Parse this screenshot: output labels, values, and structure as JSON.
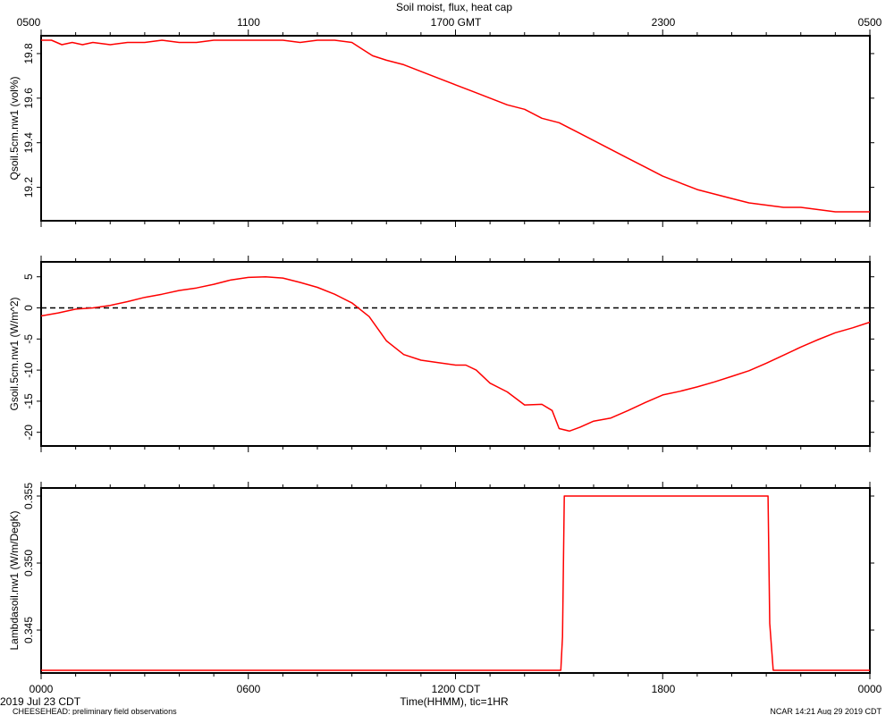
{
  "figure": {
    "title": "Soil moist, flux, heat cap",
    "top_axis_ticks": [
      "0500",
      "1100",
      "1700 GMT",
      "2300",
      "0500"
    ],
    "bottom_axis_ticks": [
      "0000",
      "0600",
      "1200 CDT",
      "1800",
      "0000"
    ],
    "x_label": "Time(HHMM), tic=1HR",
    "date_label": "2019 Jul 23 CDT",
    "footer_left": "CHEESEHEAD: preliminary field observations",
    "footer_right": "NCAR 14:21 Aug 29 2019 CDT"
  },
  "colors": {
    "series": "#ff0000",
    "axes": "#000000",
    "reference": "#000000"
  },
  "chart_data": [
    {
      "type": "line",
      "ylabel": "Qsoil.5cm.nw1 (vol%)",
      "xlim": [
        0,
        24
      ],
      "ylim": [
        19.05,
        19.88
      ],
      "yticks": [
        19.2,
        19.4,
        19.6,
        19.8
      ],
      "ytick_labels": [
        "19.2",
        "19.4",
        "19.6",
        "19.8"
      ],
      "series": [
        {
          "x": [
            0,
            0.3,
            0.6,
            0.9,
            1.2,
            1.5,
            2,
            2.5,
            3,
            3.5,
            4,
            4.5,
            5,
            5.5,
            6,
            6.5,
            7,
            7.5,
            8,
            8.5,
            9,
            9.3,
            9.6,
            10,
            10.5,
            11,
            11.5,
            12,
            12.5,
            13,
            13.5,
            14,
            14.5,
            15,
            15.5,
            16,
            16.5,
            17,
            17.5,
            18,
            18.5,
            19,
            19.5,
            20,
            20.5,
            21,
            21.5,
            22,
            22.5,
            23,
            23.5,
            24
          ],
          "y": [
            19.86,
            19.86,
            19.84,
            19.85,
            19.84,
            19.85,
            19.84,
            19.85,
            19.85,
            19.86,
            19.85,
            19.85,
            19.86,
            19.86,
            19.86,
            19.86,
            19.86,
            19.85,
            19.86,
            19.86,
            19.85,
            19.82,
            19.79,
            19.77,
            19.75,
            19.72,
            19.69,
            19.66,
            19.63,
            19.6,
            19.57,
            19.55,
            19.51,
            19.49,
            19.45,
            19.41,
            19.37,
            19.33,
            19.29,
            19.25,
            19.22,
            19.19,
            19.17,
            19.15,
            19.13,
            19.12,
            19.11,
            19.11,
            19.1,
            19.09,
            19.09,
            19.09
          ]
        }
      ]
    },
    {
      "type": "line",
      "ylabel": "Gsoil.5cm.nw1 (W/m^2)",
      "xlim": [
        0,
        24
      ],
      "ylim": [
        -22.2,
        7.4
      ],
      "yticks": [
        -20,
        -15,
        -10,
        -5,
        0,
        5
      ],
      "ytick_labels": [
        "-20",
        "-15",
        "-10",
        "-5",
        "0",
        "5"
      ],
      "reference_line": 0,
      "series": [
        {
          "x": [
            0,
            0.5,
            1,
            1.5,
            2,
            2.5,
            3,
            3.5,
            4,
            4.5,
            5,
            5.5,
            6,
            6.5,
            7,
            7.5,
            8,
            8.5,
            9,
            9.5,
            10,
            10.5,
            11,
            11.5,
            12,
            12.3,
            12.6,
            13,
            13.5,
            14,
            14.5,
            14.8,
            15,
            15.3,
            15.6,
            16,
            16.5,
            17,
            17.5,
            18,
            18.5,
            19,
            19.5,
            20,
            20.5,
            21,
            21.5,
            22,
            22.5,
            23,
            23.5,
            24
          ],
          "y": [
            -1.3,
            -0.8,
            -0.2,
            0.0,
            0.4,
            1.0,
            1.7,
            2.2,
            2.8,
            3.2,
            3.8,
            4.5,
            4.9,
            5.0,
            4.8,
            4.1,
            3.3,
            2.2,
            0.8,
            -1.4,
            -5.3,
            -7.5,
            -8.4,
            -8.8,
            -9.2,
            -9.2,
            -10.0,
            -12.1,
            -13.5,
            -15.6,
            -15.5,
            -16.5,
            -19.4,
            -19.8,
            -19.2,
            -18.2,
            -17.7,
            -16.5,
            -15.2,
            -14.0,
            -13.4,
            -12.7,
            -11.9,
            -11.0,
            -10.1,
            -8.9,
            -7.6,
            -6.3,
            -5.1,
            -4.0,
            -3.2,
            -2.3
          ]
        }
      ]
    },
    {
      "type": "line",
      "ylabel": "Lambdasoil.nw1 (W/m/DegK)",
      "xlim": [
        0,
        24
      ],
      "ylim": [
        0.3418,
        0.3556
      ],
      "yticks": [
        0.345,
        0.35,
        0.355
      ],
      "ytick_labels": [
        "0.345",
        "0.350",
        "0.355"
      ],
      "series": [
        {
          "x": [
            0,
            15.05,
            15.1,
            15.15,
            21.05,
            21.1,
            21.2,
            24
          ],
          "y": [
            0.342,
            0.342,
            0.3445,
            0.355,
            0.355,
            0.3455,
            0.342,
            0.342
          ]
        }
      ]
    }
  ]
}
